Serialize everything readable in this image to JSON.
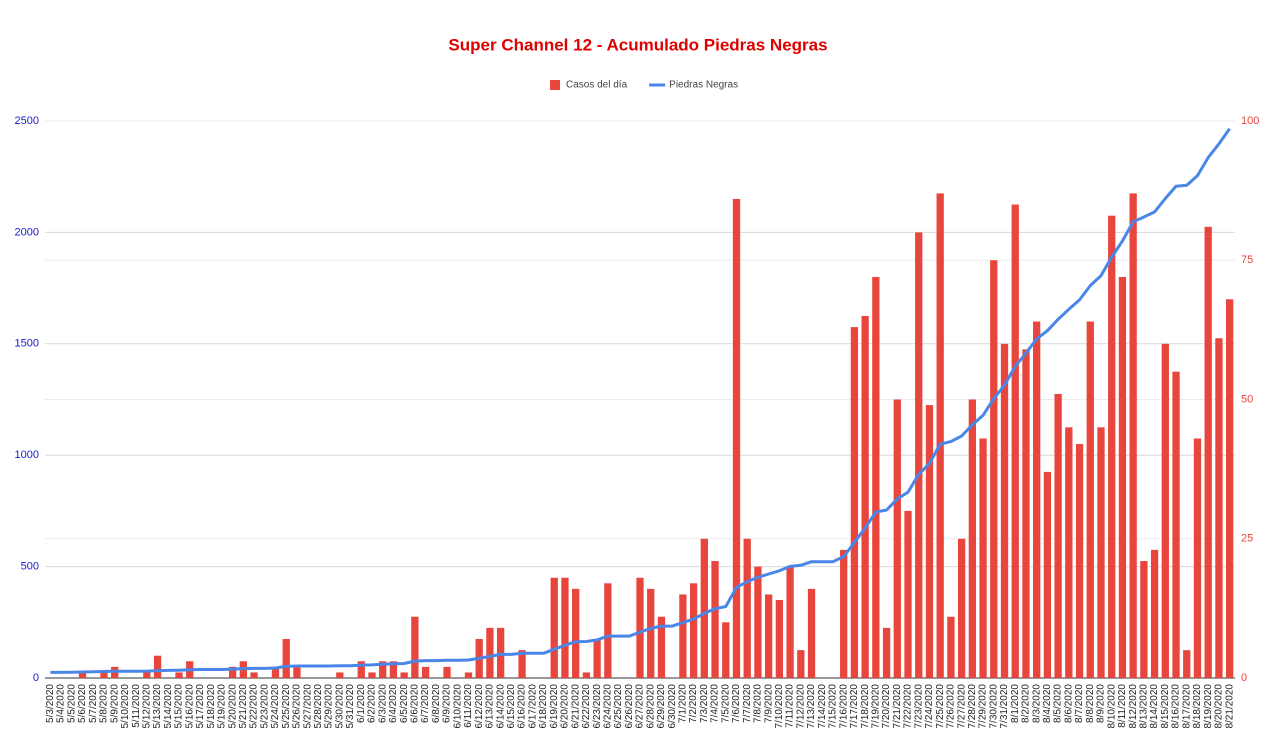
{
  "chart_data": {
    "type": "bar",
    "title": "Super Channel 12 - Acumulado Piedras Negras",
    "categories": [
      "5/3/2020",
      "5/4/2020",
      "5/5/2020",
      "5/6/2020",
      "5/7/2020",
      "5/8/2020",
      "5/9/2020",
      "5/10/2020",
      "5/11/2020",
      "5/12/2020",
      "5/13/2020",
      "5/14/2020",
      "5/15/2020",
      "5/16/2020",
      "5/17/2020",
      "5/18/2020",
      "5/19/2020",
      "5/20/2020",
      "5/21/2020",
      "5/22/2020",
      "5/23/2020",
      "5/24/2020",
      "5/25/2020",
      "5/26/2020",
      "5/27/2020",
      "5/28/2020",
      "5/29/2020",
      "5/30/2020",
      "5/31/2020",
      "6/1/2020",
      "6/2/2020",
      "6/3/2020",
      "6/4/2020",
      "6/5/2020",
      "6/6/2020",
      "6/7/2020",
      "6/8/2020",
      "6/9/2020",
      "6/10/2020",
      "6/11/2020",
      "6/12/2020",
      "6/13/2020",
      "6/14/2020",
      "6/15/2020",
      "6/16/2020",
      "6/17/2020",
      "6/18/2020",
      "6/19/2020",
      "6/20/2020",
      "6/21/2020",
      "6/22/2020",
      "6/23/2020",
      "6/24/2020",
      "6/25/2020",
      "6/26/2020",
      "6/27/2020",
      "6/28/2020",
      "6/29/2020",
      "6/30/2020",
      "7/1/2020",
      "7/2/2020",
      "7/3/2020",
      "7/4/2020",
      "7/5/2020",
      "7/6/2020",
      "7/7/2020",
      "7/8/2020",
      "7/9/2020",
      "7/10/2020",
      "7/11/2020",
      "7/12/2020",
      "7/13/2020",
      "7/14/2020",
      "7/15/2020",
      "7/16/2020",
      "7/17/2020",
      "7/18/2020",
      "7/19/2020",
      "7/20/2020",
      "7/21/2020",
      "7/22/2020",
      "7/23/2020",
      "7/24/2020",
      "7/25/2020",
      "7/26/2020",
      "7/27/2020",
      "7/28/2020",
      "7/29/2020",
      "7/30/2020",
      "7/31/2020",
      "8/1/2020",
      "8/2/2020",
      "8/3/2020",
      "8/4/2020",
      "8/5/2020",
      "8/6/2020",
      "8/7/2020",
      "8/8/2020",
      "8/9/2020",
      "8/10/2020",
      "8/11/2020",
      "8/12/2020",
      "8/13/2020",
      "8/14/2020",
      "8/15/2020",
      "8/16/2020",
      "8/17/2020",
      "8/18/2020",
      "8/19/2020",
      "8/20/2020",
      "8/21/2020"
    ],
    "series": [
      {
        "name": "Casos del día",
        "type": "bar",
        "axis": "y2",
        "color": "#e8453c",
        "values": [
          0,
          0,
          0,
          1,
          0,
          1,
          2,
          0,
          0,
          1,
          4,
          0,
          1,
          3,
          0,
          0,
          0,
          2,
          3,
          1,
          0,
          2,
          7,
          2,
          0,
          0,
          0,
          1,
          0,
          3,
          1,
          3,
          3,
          1,
          11,
          2,
          0,
          2,
          0,
          1,
          7,
          9,
          9,
          0,
          5,
          0,
          0,
          18,
          18,
          16,
          1,
          7,
          17,
          0,
          0,
          18,
          16,
          11,
          0,
          15,
          17,
          25,
          21,
          10,
          86,
          25,
          20,
          15,
          14,
          20,
          5,
          16,
          0,
          0,
          23,
          63,
          65,
          72,
          9,
          50,
          30,
          80,
          49,
          87,
          11,
          25,
          50,
          43,
          75,
          60,
          85,
          59,
          64,
          37,
          51,
          45,
          42,
          64,
          45,
          83,
          72,
          87,
          21,
          23,
          60,
          55,
          5,
          43,
          81,
          61,
          68
        ]
      },
      {
        "name": "Piedras Negras",
        "type": "line",
        "axis": "y",
        "color": "#4a86e8",
        "values": [
          25,
          25,
          26,
          27,
          28,
          29,
          30,
          30,
          30,
          31,
          33,
          34,
          35,
          37,
          38,
          38,
          38,
          40,
          42,
          43,
          43,
          45,
          52,
          54,
          54,
          54,
          54,
          55,
          55,
          58,
          59,
          62,
          64,
          65,
          76,
          78,
          78,
          80,
          80,
          81,
          88,
          97,
          106,
          106,
          111,
          111,
          111,
          129,
          147,
          163,
          164,
          171,
          188,
          188,
          188,
          206,
          222,
          233,
          233,
          248,
          265,
          290,
          311,
          321,
          407,
          432,
          452,
          467,
          481,
          501,
          506,
          522,
          522,
          522,
          545,
          608,
          673,
          745,
          754,
          804,
          834,
          914,
          963,
          1050,
          1061,
          1086,
          1136,
          1179,
          1254,
          1314,
          1399,
          1458,
          1522,
          1559,
          1610,
          1655,
          1697,
          1761,
          1806,
          1889,
          1961,
          2048,
          2069,
          2092,
          2152,
          2207,
          2212,
          2255,
          2336,
          2397,
          2465
        ]
      }
    ],
    "ylim": [
      0,
      2500
    ],
    "yticks": [
      0,
      500,
      1000,
      1500,
      2000,
      2500
    ],
    "y2lim": [
      0,
      100
    ],
    "y2ticks": [
      0,
      25,
      50,
      75,
      100
    ],
    "grid": true,
    "legend": "top"
  }
}
